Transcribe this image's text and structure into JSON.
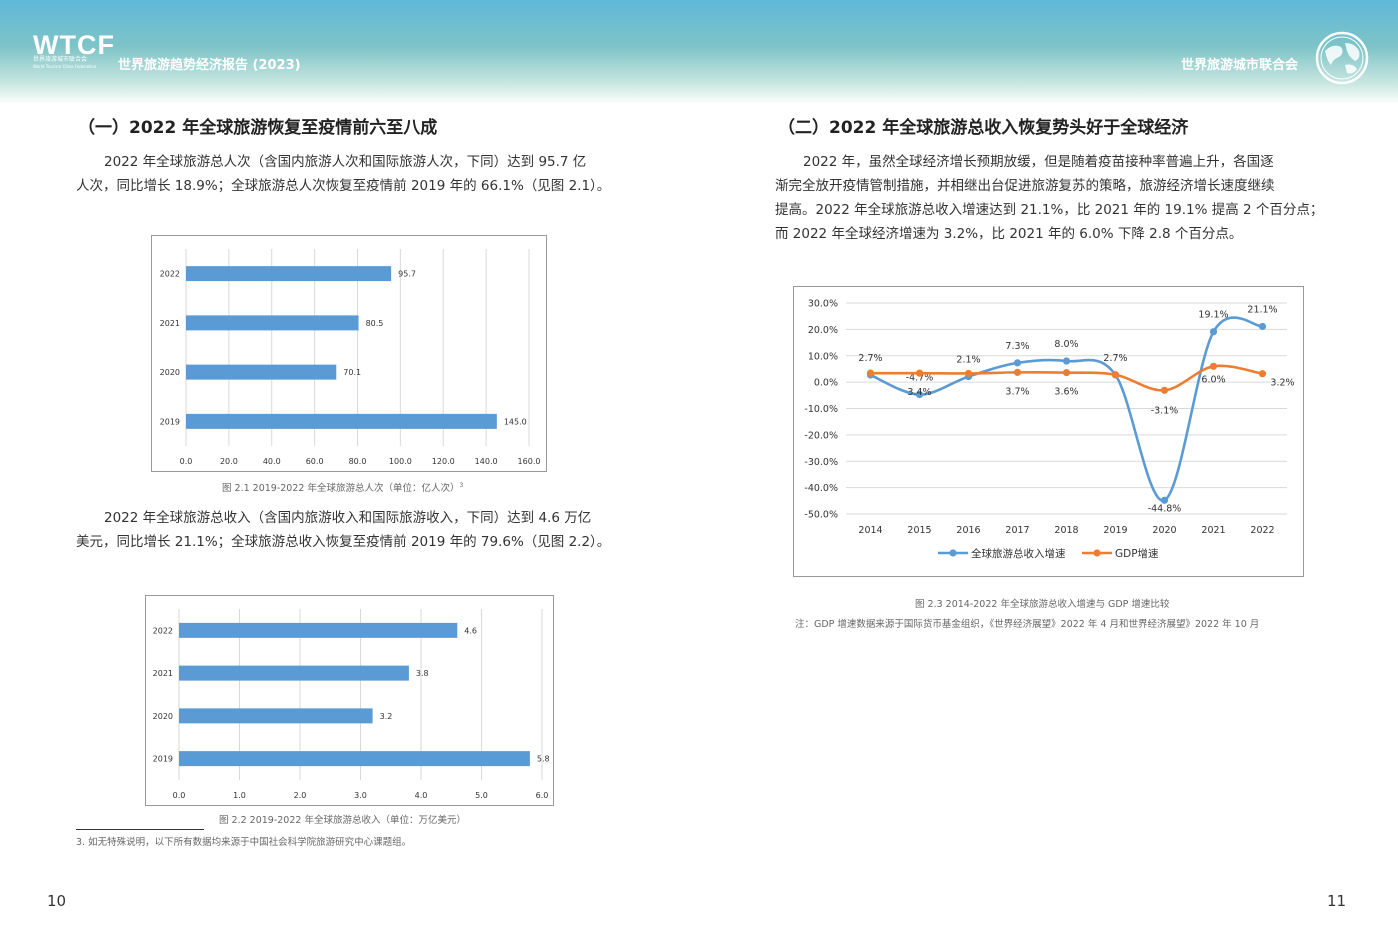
{
  "header": {
    "logo_text": "WTCF",
    "logo_sub_cn": "世界旅游城市联合会",
    "logo_sub_en": "World Tourism Cities Federation",
    "report_title": "世界旅游趋势经济报告 (2023)",
    "org_name": "世界旅游城市联合会"
  },
  "left": {
    "section_title": "（一）2022 年全球旅游恢复至疫情前六至八成",
    "para1": [
      "2022 年全球旅游总人次（含国内旅游人次和国际旅游人次，下同）达到 95.7 亿",
      "人次，同比增长 18.9%；全球旅游总人次恢复至疫情前 2019 年的 66.1%（见图 2.1）。"
    ],
    "caption1": "图 2.1 2019-2022 年全球旅游总人次（单位：亿人次）",
    "caption1_sup": "3",
    "para2": [
      "2022 年全球旅游总收入（含国内旅游收入和国际旅游收入，下同）达到 4.6 万亿",
      "美元，同比增长 21.1%；全球旅游总收入恢复至疫情前 2019 年的 79.6%（见图 2.2）。"
    ],
    "caption2": "图 2.2 2019-2022 年全球旅游总收入（单位：万亿美元）",
    "footnote": "3. 如无特殊说明，以下所有数据均来源于中国社会科学院旅游研究中心课题组。",
    "page_number": "10"
  },
  "right": {
    "section_title": "（二）2022 年全球旅游总收入恢复势头好于全球经济",
    "para": [
      "2022 年，虽然全球经济增长预期放缓，但是随着疫苗接种率普遍上升，各国逐",
      "渐完全放开疫情管制措施，并相继出台促进旅游复苏的策略，旅游经济增长速度继续",
      "提高。2022 年全球旅游总收入增速达到 21.1%，比 2021 年的 19.1% 提高 2 个百分点；",
      "而 2022 年全球经济增速为 3.2%，比 2021 年的 6.0% 下降 2.8 个百分点。"
    ],
    "caption": "图 2.3 2014-2022 年全球旅游总收入增速与 GDP 增速比较",
    "note": "注：GDP 增速数据来源于国际货币基金组织，《世界经济展望》2022 年 4 月和世界经济展望》2022 年 10 月",
    "page_number": "11"
  },
  "colors": {
    "bar": "#5b9bd5",
    "line1": "#5b9bd5",
    "line2": "#ed7d31",
    "grid": "#d9d9d9"
  },
  "chart_data": [
    {
      "type": "bar",
      "orientation": "horizontal",
      "categories": [
        "2022",
        "2021",
        "2020",
        "2019"
      ],
      "values": [
        95.7,
        80.5,
        70.1,
        145.0
      ],
      "labels": [
        "95.7",
        "80.5",
        "70.1",
        "145.0"
      ],
      "xlim": [
        0,
        160
      ],
      "xticks": [
        "0.0",
        "20.0",
        "40.0",
        "60.0",
        "80.0",
        "100.0",
        "120.0",
        "140.0",
        "160.0"
      ],
      "grid": true
    },
    {
      "type": "bar",
      "orientation": "horizontal",
      "categories": [
        "2022",
        "2021",
        "2020",
        "2019"
      ],
      "values": [
        4.6,
        3.8,
        3.2,
        5.8
      ],
      "labels": [
        "4.6",
        "3.8",
        "3.2",
        "5.8"
      ],
      "xlim": [
        0,
        6
      ],
      "xticks": [
        "0.0",
        "1.0",
        "2.0",
        "3.0",
        "4.0",
        "5.0",
        "6.0"
      ],
      "grid": true
    },
    {
      "type": "line",
      "x": [
        "2014",
        "2015",
        "2016",
        "2017",
        "2018",
        "2019",
        "2020",
        "2021",
        "2022"
      ],
      "ylim": [
        -50,
        30
      ],
      "yticks": [
        "30.0%",
        "20.0%",
        "10.0%",
        "0.0%",
        "-10.0%",
        "-20.0%",
        "-30.0%",
        "-40.0%",
        "-50.0%"
      ],
      "legend_position": "bottom",
      "series": [
        {
          "name": "全球旅游总收入增速",
          "values": [
            2.7,
            -4.7,
            2.1,
            7.3,
            8.0,
            2.7,
            -44.8,
            19.1,
            21.1
          ],
          "labels": [
            "2.7%",
            "-4.7%",
            "2.1%",
            "7.3%",
            "8.0%",
            "2.7%",
            "-44.8%",
            "19.1%",
            "21.1%"
          ]
        },
        {
          "name": "GDP增速",
          "values": [
            3.4,
            3.4,
            3.3,
            3.7,
            3.6,
            2.8,
            -3.1,
            6.0,
            3.2
          ],
          "labels": [
            "",
            "3.4%",
            "",
            "3.7%",
            "3.6%",
            "",
            "-3.1%",
            "6.0%",
            "3.2%"
          ]
        }
      ]
    }
  ]
}
